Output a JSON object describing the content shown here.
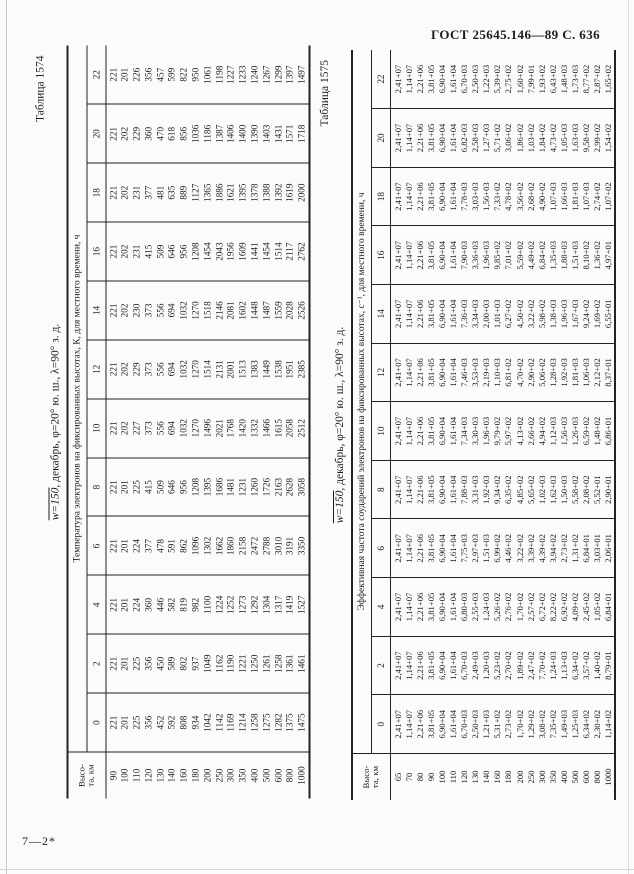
{
  "page": {
    "header": "ГОСТ 25645.146—89 С. 636",
    "footer_signature": "7—2*"
  },
  "tables": [
    {
      "table_label": "Таблица 1574",
      "condition_w": "w=150",
      "condition_rest": ", декабрь, φ=20° ю. ш., λ=90° з. д.",
      "span_header": "Температура электронов на фиксированных высотах, К, для местного времени, ч",
      "height_header_1": "Высо-",
      "height_header_2": "та, км",
      "hour_headers": [
        "0",
        "2",
        "4",
        "6",
        "8",
        "10",
        "12",
        "14",
        "16",
        "18",
        "20",
        "22"
      ],
      "heights": [
        "90",
        "100",
        "110",
        "120",
        "130",
        "140",
        "160",
        "180",
        "200",
        "250",
        "300",
        "350",
        "400",
        "500",
        "600",
        "800",
        "1000"
      ],
      "series": [
        {
          "hour": "0",
          "values": [
            "221",
            "201",
            "225",
            "356",
            "452",
            "592",
            "808",
            "934",
            "1042",
            "1142",
            "1169",
            "1214",
            "1258",
            "1275",
            "1282",
            "1375",
            "1475"
          ]
        },
        {
          "hour": "2",
          "values": [
            "221",
            "201",
            "225",
            "356",
            "450",
            "589",
            "802",
            "937",
            "1049",
            "1162",
            "1190",
            "1221",
            "1250",
            "1261",
            "1258",
            "1361",
            "1461"
          ]
        },
        {
          "hour": "4",
          "values": [
            "221",
            "201",
            "224",
            "360",
            "446",
            "582",
            "819",
            "982",
            "1100",
            "1224",
            "1252",
            "1273",
            "1292",
            "1304",
            "1317",
            "1419",
            "1527"
          ]
        },
        {
          "hour": "6",
          "values": [
            "221",
            "201",
            "224",
            "377",
            "478",
            "591",
            "862",
            "1096",
            "1302",
            "1662",
            "1860",
            "2158",
            "2472",
            "2788",
            "3010",
            "3191",
            "3350"
          ]
        },
        {
          "hour": "8",
          "values": [
            "221",
            "201",
            "225",
            "415",
            "509",
            "646",
            "956",
            "1208",
            "1395",
            "1686",
            "1481",
            "1231",
            "1260",
            "1726",
            "2163",
            "2628",
            "3058"
          ]
        },
        {
          "hour": "10",
          "values": [
            "221",
            "202",
            "227",
            "373",
            "556",
            "694",
            "1032",
            "1270",
            "1496",
            "2021",
            "1768",
            "1420",
            "1332",
            "1466",
            "1615",
            "2058",
            "2512"
          ]
        },
        {
          "hour": "12",
          "values": [
            "221",
            "202",
            "229",
            "373",
            "556",
            "694",
            "1032",
            "1270",
            "1514",
            "2131",
            "2001",
            "1513",
            "1383",
            "1449",
            "1538",
            "1951",
            "2385"
          ]
        },
        {
          "hour": "14",
          "values": [
            "221",
            "202",
            "230",
            "373",
            "556",
            "694",
            "1032",
            "1270",
            "1518",
            "2146",
            "2081",
            "1602",
            "1448",
            "1487",
            "1559",
            "2028",
            "2526"
          ]
        },
        {
          "hour": "16",
          "values": [
            "221",
            "202",
            "231",
            "415",
            "509",
            "646",
            "956",
            "1208",
            "1454",
            "2043",
            "1956",
            "1609",
            "1441",
            "1454",
            "1514",
            "2117",
            "2762"
          ]
        },
        {
          "hour": "18",
          "values": [
            "221",
            "202",
            "231",
            "377",
            "481",
            "635",
            "889",
            "1127",
            "1365",
            "1886",
            "1621",
            "1395",
            "1378",
            "1388",
            "1392",
            "1619",
            "2000"
          ]
        },
        {
          "hour": "20",
          "values": [
            "221",
            "202",
            "229",
            "360",
            "470",
            "618",
            "856",
            "1036",
            "1186",
            "1387",
            "1406",
            "1400",
            "1390",
            "1403",
            "1431",
            "1571",
            "1718"
          ]
        },
        {
          "hour": "22",
          "values": [
            "221",
            "201",
            "226",
            "356",
            "457",
            "599",
            "822",
            "950",
            "1061",
            "1198",
            "1227",
            "1233",
            "1240",
            "1267",
            "1299",
            "1397",
            "1497"
          ]
        }
      ]
    },
    {
      "table_label": "Таблица 1575",
      "condition_w": "w=150",
      "condition_rest": ", декабрь, φ=20° ю. ш., λ=90° з. д.",
      "span_header": "Эффективная частота соударений электронов на фиксированных высотах, с⁻¹, для местного времени, ч",
      "height_header_1": "Высо-",
      "height_header_2": "та, км",
      "hour_headers": [
        "0",
        "2",
        "4",
        "6",
        "8",
        "10",
        "12",
        "14",
        "16",
        "18",
        "20",
        "22"
      ],
      "heights": [
        "65",
        "70",
        "80",
        "90",
        "100",
        "110",
        "120",
        "130",
        "140",
        "160",
        "180",
        "200",
        "250",
        "300",
        "350",
        "400",
        "500",
        "600",
        "800",
        "1000"
      ],
      "series": [
        {
          "hour": "0",
          "values": [
            "2,41+07",
            "1,14+07",
            "2,21+06",
            "3,81+05",
            "6,90+04",
            "1,61+04",
            "6,70+03",
            "2,50+03",
            "1,21+03",
            "5,31+02",
            "2,73+02",
            "1,70+02",
            "1,29+02",
            "3,08+02",
            "7,35+02",
            "1,49+03",
            "1,25+03",
            "6,34+02",
            "2,30+02",
            "1,14+02"
          ]
        },
        {
          "hour": "2",
          "values": [
            "2,41+07",
            "1,14+07",
            "2,21+06",
            "3,81+05",
            "6,90+04",
            "1,61+04",
            "6,70+03",
            "2,49+03",
            "1,20+03",
            "5,23+02",
            "2,70+02",
            "1,89+02",
            "2,47+02",
            "7,70+02",
            "1,24+03",
            "1,13+03",
            "6,34+02",
            "3,57+02",
            "1,40+02",
            "8,79+01"
          ]
        },
        {
          "hour": "4",
          "values": [
            "2,41+07",
            "1,14+07",
            "2,21+06",
            "3,81+05",
            "6,90+04",
            "1,61+04",
            "6,80+03",
            "2,55+03",
            "1,24+03",
            "5,26+02",
            "2,76+02",
            "1,70+02",
            "2,57+02",
            "6,72+02",
            "8,22+02",
            "6,92+02",
            "4,09+02",
            "2,45+02",
            "1,05+02",
            "6,84+01"
          ]
        },
        {
          "hour": "6",
          "values": [
            "2,41+07",
            "1,14+07",
            "2,21+06",
            "3,81+05",
            "6,90+04",
            "1,61+04",
            "7,75+03",
            "2,97+03",
            "1,51+03",
            "6,99+02",
            "4,46+02",
            "3,22+02",
            "3,39+02",
            "4,39+02",
            "3,94+02",
            "2,73+02",
            "1,31+02",
            "6,84+01",
            "3,03+01",
            "2,06+01"
          ]
        },
        {
          "hour": "8",
          "values": [
            "2,41+07",
            "1,14+07",
            "2,21+06",
            "3,81+05",
            "6,90+04",
            "1,61+04",
            "7,88+03",
            "3,31+03",
            "1,92+03",
            "9,34+02",
            "6,35+02",
            "4,85+02",
            "5,65+02",
            "1,02+03",
            "1,62+03",
            "1,50+03",
            "5,58+02",
            "2,08+02",
            "5,52+01",
            "2,90+01"
          ]
        },
        {
          "hour": "10",
          "values": [
            "2,41+07",
            "1,14+07",
            "2,21+06",
            "3,81+05",
            "6,90+04",
            "1,61+04",
            "7,34+03",
            "3,30+03",
            "1,96+03",
            "9,79+02",
            "5,97+02",
            "4,13+02",
            "2,66+02",
            "4,94+02",
            "1,12+03",
            "1,56+03",
            "1,26+03",
            "6,59+02",
            "1,48+02",
            "6,86+01"
          ]
        },
        {
          "hour": "12",
          "values": [
            "2,41+07",
            "1,14+07",
            "2,21+06",
            "3,81+05",
            "6,90+04",
            "1,61+04",
            "7,46+03",
            "3,53+03",
            "2,19+03",
            "1,10+03",
            "6,81+02",
            "4,70+02",
            "2,90+02",
            "5,06+02",
            "1,28+03",
            "1,92+03",
            "1,81+03",
            "1,06+03",
            "2,12+02",
            "8,37+01"
          ]
        },
        {
          "hour": "14",
          "values": [
            "2,41+07",
            "1,14+07",
            "2,21+06",
            "3,81+05",
            "6,90+04",
            "1,61+04",
            "7,36+03",
            "3,34+03",
            "2,00+03",
            "1,01+03",
            "6,27+02",
            "4,50+02",
            "3,22+02",
            "5,98+02",
            "1,38+03",
            "1,96+03",
            "1,67+03",
            "9,24+02",
            "1,69+02",
            "6,55+01"
          ]
        },
        {
          "hour": "16",
          "values": [
            "2,41+07",
            "1,14+07",
            "2,21+06",
            "3,81+05",
            "6,90+04",
            "1,61+04",
            "7,90+03",
            "3,36+03",
            "1,96+03",
            "9,85+02",
            "7,01+02",
            "5,59+02",
            "4,49+02",
            "6,84+02",
            "1,35+03",
            "1,88+03",
            "1,51+03",
            "8,10+02",
            "1,36+02",
            "4,97+01"
          ]
        },
        {
          "hour": "18",
          "values": [
            "2,41+07",
            "1,14+07",
            "2,21+06",
            "3,81+05",
            "6,90+04",
            "1,61+04",
            "7,78+03",
            "3,03+03",
            "1,56+03",
            "7,33+02",
            "4,78+02",
            "3,56+02",
            "2,68+02",
            "4,90+02",
            "1,07+03",
            "1,66+03",
            "1,81+03",
            "1,07+03",
            "2,74+02",
            "1,07+02"
          ]
        },
        {
          "hour": "20",
          "values": [
            "2,41+07",
            "1,14+07",
            "2,21+06",
            "3,81+05",
            "6,90+04",
            "1,61+04",
            "6,82+03",
            "2,58+03",
            "1,27+03",
            "5,71+02",
            "3,06+02",
            "1,86+02",
            "1,03+02",
            "1,84+02",
            "4,73+02",
            "1,05+03",
            "1,63+03",
            "9,58+02",
            "2,99+02",
            "1,54+02"
          ]
        },
        {
          "hour": "22",
          "values": [
            "2,41+07",
            "1,14+07",
            "2,21+06",
            "3,81+05",
            "6,90+04",
            "1,61+04",
            "6,70+03",
            "2,50+03",
            "1,22+03",
            "5,39+02",
            "2,75+02",
            "1,60+02",
            "7,99+01",
            "1,93+02",
            "6,43+02",
            "1,48+03",
            "1,73+03",
            "8,77+02",
            "2,87+02",
            "1,65+02"
          ]
        }
      ]
    }
  ]
}
